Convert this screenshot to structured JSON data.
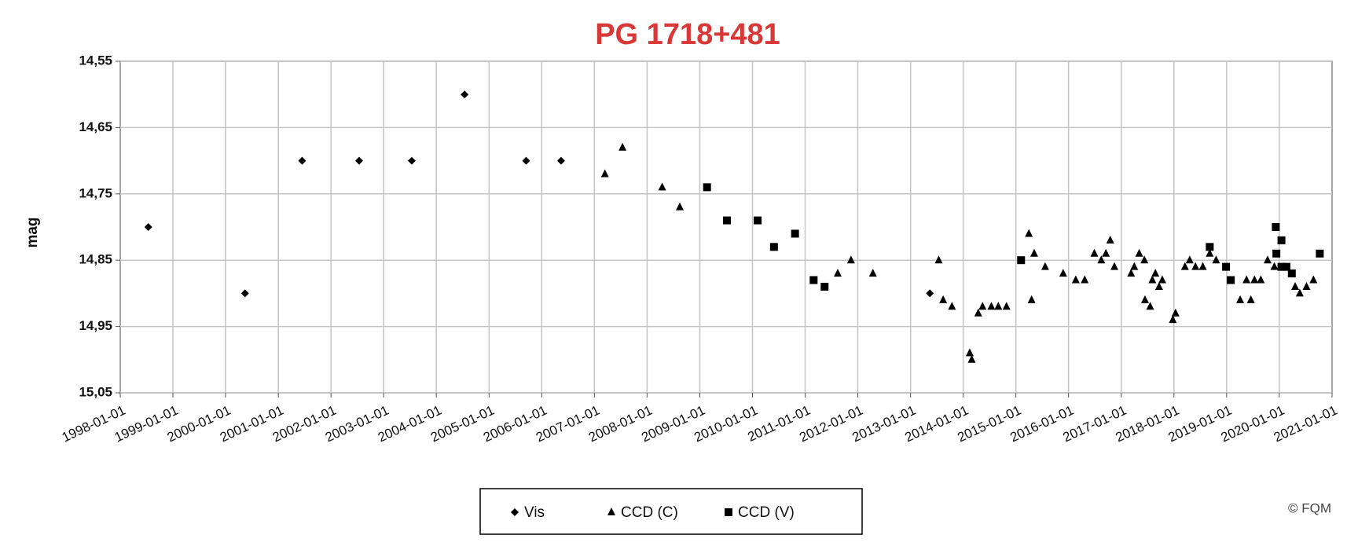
{
  "chart_data": {
    "type": "scatter",
    "title": "PG 1718+481",
    "y_label": "mag",
    "credit": "© FQM",
    "invert_y": true,
    "grid": true,
    "legend": "bottom",
    "xlim": [
      "1998-01-01",
      "2021-01-01"
    ],
    "xticks": [
      "1998-01-01",
      "1999-01-01",
      "2000-01-01",
      "2001-01-01",
      "2002-01-01",
      "2003-01-01",
      "2004-01-01",
      "2005-01-01",
      "2006-01-01",
      "2007-01-01",
      "2008-01-01",
      "2009-01-01",
      "2010-01-01",
      "2011-01-01",
      "2012-01-01",
      "2013-01-01",
      "2014-01-01",
      "2015-01-01",
      "2016-01-01",
      "2017-01-01",
      "2018-01-01",
      "2019-01-01",
      "2020-01-01",
      "2021-01-01"
    ],
    "ylim": [
      14.55,
      15.05
    ],
    "yticks": [
      {
        "value": 14.55,
        "label": "14,55"
      },
      {
        "value": 14.65,
        "label": "14,65"
      },
      {
        "value": 14.75,
        "label": "14,75"
      },
      {
        "value": 14.85,
        "label": "14,85"
      },
      {
        "value": 14.95,
        "label": "14,95"
      },
      {
        "value": 15.05,
        "label": "15,05"
      }
    ],
    "series": [
      {
        "name": "Vis",
        "color": "#000000",
        "marker": "diamond",
        "x": [
          "1998-07-15",
          "2000-05-15",
          "2001-06-15",
          "2002-07-15",
          "2003-07-15",
          "2004-07-15",
          "2005-09-15",
          "2006-05-15",
          "2013-05-15"
        ],
        "values": [
          14.8,
          14.9,
          14.7,
          14.7,
          14.7,
          14.6,
          14.7,
          14.7,
          14.9
        ]
      },
      {
        "name": "CCD (C)",
        "color": "#000000",
        "marker": "triangle",
        "x": [
          "2007-03-15",
          "2007-07-15",
          "2008-04-15",
          "2008-08-15",
          "2011-08-15",
          "2011-11-15",
          "2012-04-15",
          "2013-07-15",
          "2013-08-15",
          "2013-10-15",
          "2014-02-15",
          "2014-03-01",
          "2014-04-15",
          "2014-05-15",
          "2014-07-15",
          "2014-09-01",
          "2014-10-28",
          "2015-04-01",
          "2015-05-08",
          "2015-04-20",
          "2015-07-23",
          "2015-11-25",
          "2016-02-20",
          "2016-04-22",
          "2016-06-28",
          "2016-08-15",
          "2016-09-16",
          "2016-10-16",
          "2016-11-14",
          "2017-03-10",
          "2017-04-01",
          "2017-05-05",
          "2017-06-10",
          "2017-06-14",
          "2017-07-20",
          "2017-08-04",
          "2017-08-25",
          "2017-09-20",
          "2017-10-12",
          "2017-12-24",
          "2018-01-12",
          "2018-03-18",
          "2018-04-20",
          "2018-05-30",
          "2018-07-20",
          "2018-09-06",
          "2018-10-20",
          "2019-04-05",
          "2019-05-19",
          "2019-06-18",
          "2019-07-13",
          "2019-08-26",
          "2019-10-12",
          "2019-11-28",
          "2020-04-20",
          "2020-05-22",
          "2020-07-08",
          "2020-08-25"
        ],
        "values": [
          14.72,
          14.68,
          14.74,
          14.77,
          14.87,
          14.85,
          14.87,
          14.85,
          14.91,
          14.92,
          14.99,
          15.0,
          14.93,
          14.92,
          14.92,
          14.92,
          14.92,
          14.81,
          14.84,
          14.91,
          14.86,
          14.87,
          14.88,
          14.88,
          14.84,
          14.85,
          14.84,
          14.82,
          14.86,
          14.87,
          14.86,
          14.84,
          14.85,
          14.91,
          14.92,
          14.88,
          14.87,
          14.89,
          14.88,
          14.94,
          14.93,
          14.86,
          14.85,
          14.86,
          14.86,
          14.84,
          14.85,
          14.91,
          14.88,
          14.91,
          14.88,
          14.88,
          14.85,
          14.86,
          14.89,
          14.9,
          14.89,
          14.88
        ]
      },
      {
        "name": "CCD (V)",
        "color": "#000000",
        "marker": "square",
        "x": [
          "2009-02-20",
          "2009-07-08",
          "2010-02-06",
          "2010-05-30",
          "2010-10-23",
          "2011-03-01",
          "2011-05-16",
          "2015-02-06",
          "2018-09-06",
          "2018-12-28",
          "2019-01-30",
          "2019-12-08",
          "2019-12-12",
          "2020-01-16",
          "2020-01-16",
          "2020-02-20",
          "2020-03-28",
          "2020-10-08"
        ],
        "values": [
          14.74,
          14.79,
          14.79,
          14.83,
          14.81,
          14.88,
          14.89,
          14.85,
          14.83,
          14.86,
          14.88,
          14.8,
          14.84,
          14.82,
          14.86,
          14.86,
          14.87,
          14.84
        ]
      }
    ]
  }
}
